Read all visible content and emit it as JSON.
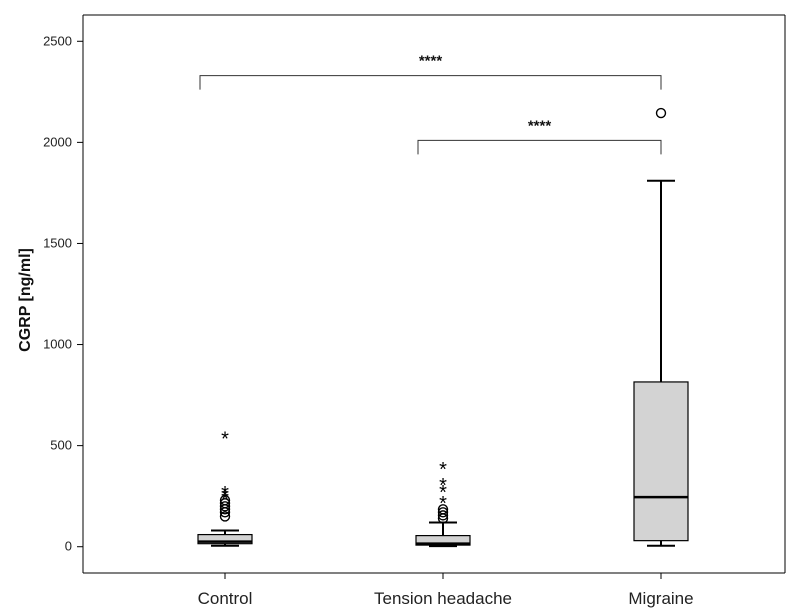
{
  "chart_data": {
    "type": "box",
    "title": "",
    "xlabel": "",
    "ylabel": "CGRP [ng/ml]",
    "ylim": [
      -130,
      2630
    ],
    "yticks": [
      0,
      500,
      1000,
      1500,
      2000,
      2500
    ],
    "grid": false,
    "categories": [
      "Control",
      "Tension headache",
      "Migraine"
    ],
    "boxes": [
      {
        "category": "Control",
        "whisker_low": 5,
        "q1": 15,
        "median": 25,
        "q3": 60,
        "whisker_high": 80,
        "outliers_circle": [
          150,
          170,
          185,
          200,
          215,
          230
        ],
        "outliers_star": [
          240,
          255,
          270,
          540
        ]
      },
      {
        "category": "Tension headache",
        "whisker_low": 3,
        "q1": 8,
        "median": 15,
        "q3": 55,
        "whisker_high": 120,
        "outliers_circle": [
          140,
          155,
          170,
          185
        ],
        "outliers_star": [
          220,
          275,
          310,
          390
        ]
      },
      {
        "category": "Migraine",
        "whisker_low": 5,
        "q1": 30,
        "median": 245,
        "q3": 815,
        "whisker_high": 1810,
        "outliers_circle": [
          2145
        ],
        "outliers_star": []
      }
    ],
    "significance": [
      {
        "from": "Control",
        "to": "Migraine",
        "y": 2330,
        "label": "****"
      },
      {
        "from": "Tension headache",
        "to": "Migraine",
        "y": 2010,
        "label": "****"
      }
    ]
  }
}
